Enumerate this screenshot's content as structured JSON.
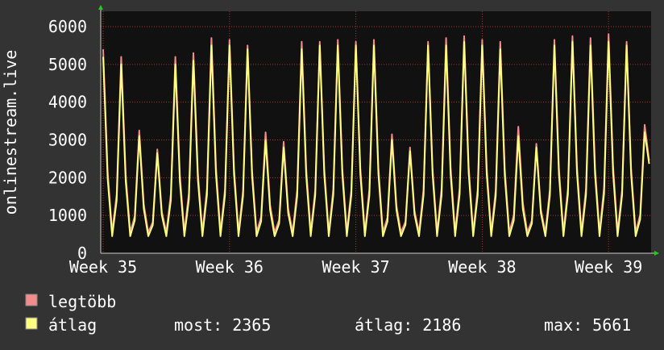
{
  "chart_data": {
    "type": "line",
    "y_label": "onlinestream.live",
    "categories": [
      "Week 35",
      null,
      null,
      null,
      null,
      null,
      null,
      null,
      null,
      null,
      null,
      null,
      null,
      null,
      null,
      null,
      null,
      null,
      null,
      null,
      null,
      null,
      null,
      null,
      null,
      null,
      null,
      null,
      "Week 36",
      null,
      null,
      null,
      null,
      null,
      null,
      null,
      null,
      null,
      null,
      null,
      null,
      null,
      null,
      null,
      null,
      null,
      null,
      null,
      null,
      null,
      null,
      null,
      null,
      null,
      null,
      null,
      "Week 37",
      null,
      null,
      null,
      null,
      null,
      null,
      null,
      null,
      null,
      null,
      null,
      null,
      null,
      null,
      null,
      null,
      null,
      null,
      null,
      null,
      null,
      null,
      null,
      null,
      null,
      null,
      null,
      "Week 38",
      null,
      null,
      null,
      null,
      null,
      null,
      null,
      null,
      null,
      null,
      null,
      null,
      null,
      null,
      null,
      null,
      null,
      null,
      null,
      null,
      null,
      null,
      null,
      null,
      null,
      null,
      null,
      "Week 39",
      null,
      null,
      null,
      null,
      null,
      null,
      null,
      null,
      null
    ],
    "series": [
      {
        "name": "legtöbb",
        "color": "#f58c8c",
        "values": [
          5400,
          2160,
          550,
          1560,
          5200,
          2080,
          550,
          975,
          3250,
          1300,
          550,
          825,
          2750,
          1100,
          550,
          1560,
          5200,
          2080,
          550,
          1590,
          5300,
          2120,
          550,
          1710,
          5700,
          2280,
          550,
          1695,
          5650,
          2260,
          550,
          1650,
          5500,
          2200,
          550,
          960,
          3200,
          1280,
          550,
          885,
          2950,
          1180,
          550,
          1680,
          5600,
          2240,
          550,
          1680,
          5600,
          2240,
          550,
          1695,
          5650,
          2260,
          550,
          1680,
          5600,
          2240,
          550,
          1695,
          5650,
          2260,
          550,
          945,
          3150,
          1260,
          550,
          840,
          2800,
          1120,
          550,
          1680,
          5600,
          2240,
          550,
          1710,
          5700,
          2280,
          550,
          1725,
          5750,
          2300,
          550,
          1695,
          5650,
          2260,
          550,
          1680,
          5600,
          2240,
          550,
          1005,
          3350,
          1340,
          550,
          870,
          2900,
          1160,
          550,
          1695,
          5650,
          2260,
          550,
          1725,
          5750,
          2300,
          550,
          1710,
          5700,
          2280,
          550,
          1740,
          5800,
          2320,
          550,
          1680,
          5600,
          2240,
          550,
          1020,
          3400,
          2450
        ]
      },
      {
        "name": "átlag",
        "color": "#ffff80",
        "values": [
          5200,
          1976,
          450,
          1400,
          5000,
          1900,
          450,
          868,
          3100,
          1178,
          450,
          742,
          2650,
          1007,
          450,
          1400,
          5000,
          1900,
          450,
          1428,
          5100,
          1938,
          450,
          1540,
          5500,
          2090,
          450,
          1540,
          5500,
          2090,
          450,
          1512,
          5400,
          2052,
          450,
          840,
          3000,
          1140,
          450,
          784,
          2800,
          1064,
          450,
          1512,
          5400,
          2052,
          450,
          1540,
          5500,
          2090,
          450,
          1540,
          5500,
          2090,
          450,
          1540,
          5500,
          2090,
          450,
          1540,
          5500,
          2090,
          450,
          840,
          3000,
          1140,
          450,
          756,
          2700,
          1026,
          450,
          1540,
          5500,
          2090,
          450,
          1540,
          5500,
          2090,
          450,
          1568,
          5600,
          2128,
          450,
          1540,
          5500,
          2090,
          450,
          1512,
          5400,
          2052,
          450,
          868,
          3100,
          1178,
          450,
          784,
          2800,
          1064,
          450,
          1540,
          5500,
          2090,
          450,
          1568,
          5600,
          2128,
          450,
          1540,
          5500,
          2090,
          450,
          1568,
          5600,
          2128,
          450,
          1540,
          5500,
          2090,
          450,
          896,
          3200,
          2365
        ]
      }
    ],
    "ylim": [
      0,
      6000
    ],
    "yticks": [
      0,
      1000,
      2000,
      3000,
      4000,
      5000,
      6000
    ],
    "grid": true,
    "stats": [
      {
        "label": "most:",
        "value": 2365
      },
      {
        "label": "átlag:",
        "value": 2186
      },
      {
        "label": "max:",
        "value": 5661
      }
    ]
  }
}
